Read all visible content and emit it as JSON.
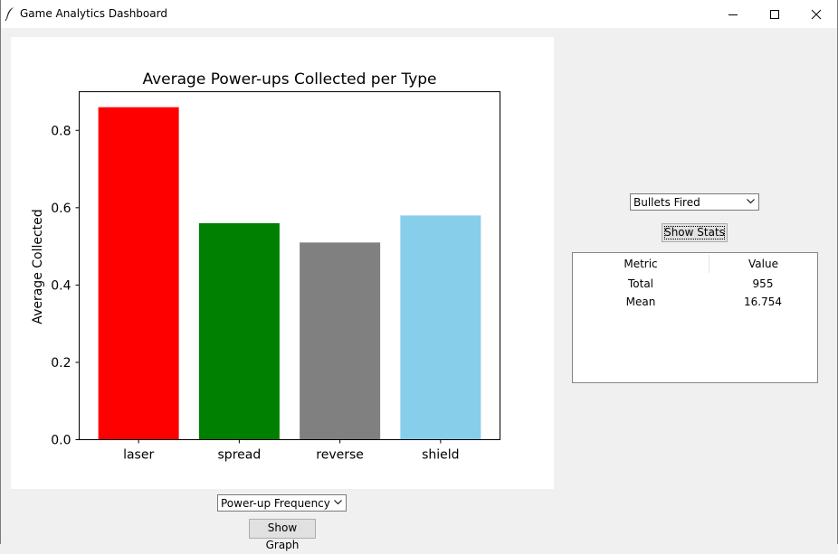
{
  "window": {
    "title": "Game Analytics Dashboard",
    "icon": "feather-icon"
  },
  "chart_data": {
    "type": "bar",
    "title": "Average Power-ups Collected per Type",
    "xlabel": "",
    "ylabel": "Average Collected",
    "categories": [
      "laser",
      "spread",
      "reverse",
      "shield"
    ],
    "values": [
      0.86,
      0.56,
      0.51,
      0.58
    ],
    "colors": [
      "#ff0000",
      "#008000",
      "#808080",
      "#87ceeb"
    ],
    "ylim": [
      0,
      0.9
    ],
    "yticks": [
      "0.0",
      "0.2",
      "0.4",
      "0.6",
      "0.8"
    ],
    "ytick_values": [
      0,
      0.2,
      0.4,
      0.6,
      0.8
    ],
    "grid": false
  },
  "graph_controls": {
    "selected": "Power-up Frequency",
    "button_label": "Show Graph"
  },
  "stats_controls": {
    "selected": "Bullets Fired",
    "button_label": "Show Stats"
  },
  "stats_table": {
    "columns": [
      "Metric",
      "Value"
    ],
    "rows": [
      {
        "metric": "Total",
        "value": "955"
      },
      {
        "metric": "Mean",
        "value": "16.754"
      }
    ]
  }
}
